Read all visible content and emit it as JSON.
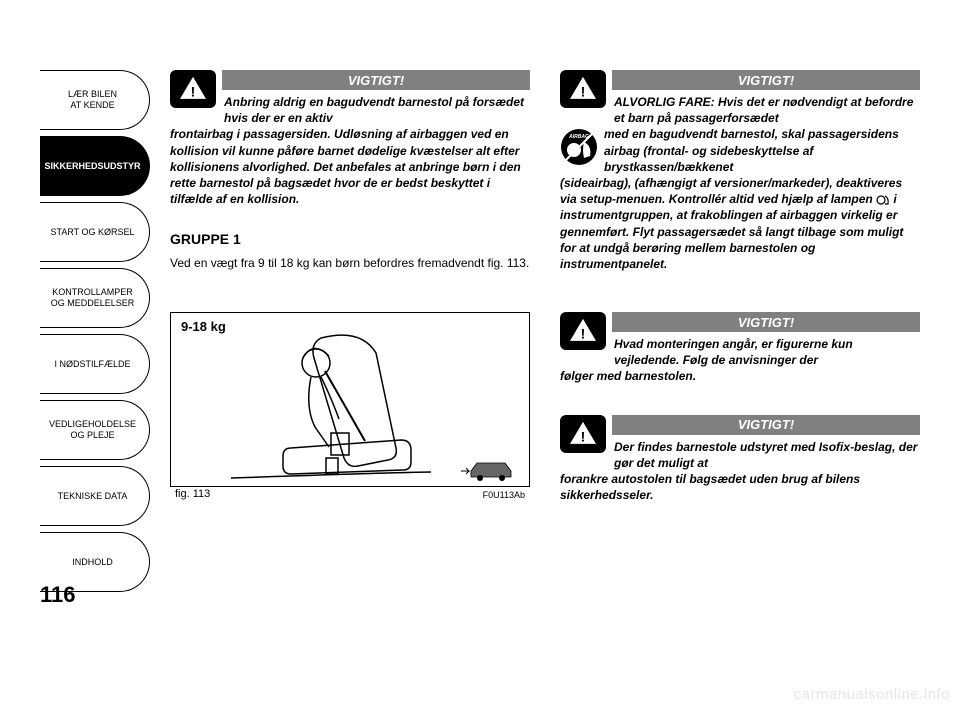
{
  "page_number": "116",
  "watermark": "carmanualsonline.info",
  "sidebar": {
    "tabs": [
      {
        "label": "LÆR BILEN\nAT KENDE",
        "active": false
      },
      {
        "label": "SIKKERHEDSUDSTYR",
        "active": true
      },
      {
        "label": "START OG KØRSEL",
        "active": false
      },
      {
        "label": "KONTROLLAMPER\nOG MEDDELELSER",
        "active": false
      },
      {
        "label": "I NØDSTILFÆLDE",
        "active": false
      },
      {
        "label": "VEDLIGEHOLDELSE\nOG PLEJE",
        "active": false
      },
      {
        "label": "TEKNISKE DATA",
        "active": false
      },
      {
        "label": "INDHOLD",
        "active": false
      }
    ]
  },
  "left_column": {
    "warning1": {
      "title": "VIGTIGT!",
      "first": "Anbring aldrig en bagudvendt barnestol på forsædet hvis der er en aktiv",
      "rest": "frontairbag i passagersiden. Udløsning af airbaggen ved en kollision vil kunne påføre barnet dødelige kvæstelser alt efter kollisionens alvorlighed. Det anbefales at anbringe børn i den rette barnestol på bagsædet hvor de er bedst beskyttet i tilfælde af en kollision."
    },
    "section_heading": "GRUPPE 1",
    "body_text": "Ved en vægt fra 9 til 18 kg kan børn befordres fremadvendt fig. 113.",
    "figure": {
      "weight_label": "9-18 kg",
      "caption": "fig. 113",
      "code": "F0U113Ab"
    }
  },
  "right_column": {
    "warning1": {
      "title": "VIGTIGT!",
      "first": "ALVORLIG FARE: Hvis det er nødvendigt at befordre et barn på passagerforsædet",
      "mid": "med en bagudvendt barnestol, skal passagersidens airbag (frontal- og sidebeskyttelse af brystkassen/bækkenet",
      "rest_a": "(sideairbag), (afhængigt af versioner/markeder), deaktiveres via setup-menuen. Kontrollér altid ved hjælp af lampen ",
      "rest_b": " i instrumentgruppen, at frakoblingen af airbaggen virkelig er gennemført. Flyt passagersædet så langt tilbage som muligt for at undgå berøring mellem barnestolen og instrumentpanelet."
    },
    "warning2": {
      "title": "VIGTIGT!",
      "first": "Hvad monteringen angår, er figurerne kun vejledende. Følg de anvisninger der",
      "rest": "følger med barnestolen."
    },
    "warning3": {
      "title": "VIGTIGT!",
      "first": "Der findes barnestole udstyret med Isofix-beslag, der gør det muligt at",
      "rest": "forankre autostolen til bagsædet uden brug af bilens sikkerhedsseler."
    }
  },
  "colors": {
    "header_bg": "#808080",
    "icon_bg": "#000000",
    "text": "#000000",
    "watermark": "#e6e6e6"
  }
}
